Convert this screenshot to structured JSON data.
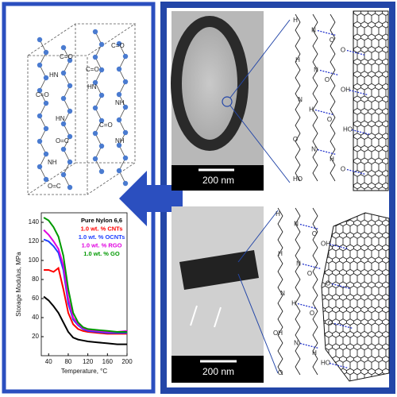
{
  "panels": {
    "scale_bars": [
      "200 nm",
      "200 nm"
    ]
  },
  "crystal": {
    "labels": [
      "C=O",
      "C=O",
      "HN",
      "C=O",
      "HN",
      "C=O",
      "NH",
      "HN",
      "C=O",
      "NH",
      "O=C",
      "NH",
      "O=C"
    ]
  },
  "chem_top": {
    "labels": [
      "H",
      "N",
      "O",
      "O",
      "H",
      "N",
      "O",
      "OH",
      "N",
      "H",
      "O",
      "HO",
      "O",
      "N",
      "H",
      "O",
      "HO"
    ]
  },
  "chem_bottom": {
    "labels": [
      "H",
      "N",
      "O",
      "OH",
      "H",
      "N",
      "O",
      "O",
      "N",
      "H",
      "O",
      "O",
      "OH",
      "N",
      "H",
      "HO",
      "O"
    ]
  },
  "chart_data": {
    "type": "line",
    "xlabel": "Temperature, °C",
    "ylabel": "Storage Modulus, MPa",
    "xlim": [
      25,
      200
    ],
    "ylim": [
      0,
      150
    ],
    "xticks": [
      40,
      80,
      120,
      160,
      200
    ],
    "yticks": [
      20,
      40,
      60,
      80,
      100,
      120,
      140
    ],
    "x": [
      30,
      40,
      50,
      60,
      70,
      80,
      90,
      100,
      110,
      120,
      140,
      160,
      180,
      200
    ],
    "series": [
      {
        "name": "Pure Nylon 6,6",
        "color": "#000000",
        "values": [
          62,
          58,
          52,
          45,
          35,
          25,
          19,
          17,
          16,
          15,
          14,
          13,
          12,
          12
        ]
      },
      {
        "name": "1.0 wt. % CNTs",
        "color": "#ff0000",
        "values": [
          90,
          90,
          88,
          92,
          70,
          45,
          33,
          28,
          26,
          25,
          24,
          23,
          23,
          23
        ]
      },
      {
        "name": "1.0 wt. % OCNTs",
        "color": "#1f3fff",
        "values": [
          122,
          120,
          115,
          108,
          90,
          55,
          38,
          32,
          28,
          26,
          25,
          24,
          24,
          24
        ]
      },
      {
        "name": "1.0 wt. % RGO",
        "color": "#e000e0",
        "values": [
          132,
          127,
          120,
          112,
          95,
          60,
          40,
          33,
          29,
          27,
          26,
          25,
          25,
          26
        ]
      },
      {
        "name": "1.0 wt. % GO",
        "color": "#009900",
        "values": [
          145,
          142,
          135,
          125,
          105,
          70,
          45,
          35,
          30,
          28,
          27,
          26,
          25,
          25
        ]
      }
    ]
  }
}
